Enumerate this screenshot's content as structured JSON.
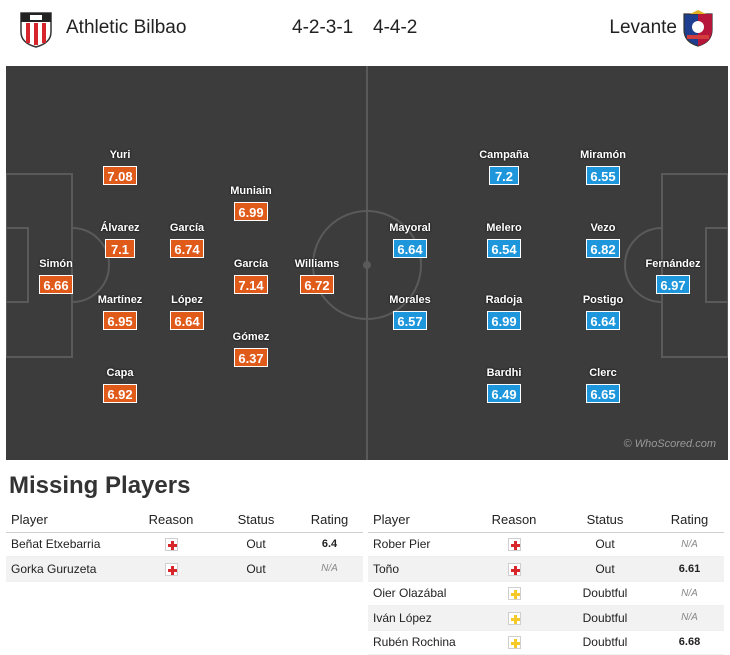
{
  "header": {
    "home_team": "Athletic Bilbao",
    "away_team": "Levante",
    "home_formation": "4-2-3-1",
    "away_formation": "4-4-2",
    "home_crest_icon": "athletic-bilbao-crest-icon",
    "away_crest_icon": "levante-crest-icon"
  },
  "pitch": {
    "watermark": "© WhoScored.com",
    "home_color": "#e05a1a",
    "away_color": "#1e96dc",
    "home_players": [
      {
        "name": "Simón",
        "rating": "6.66"
      },
      {
        "name": "Yuri",
        "rating": "7.08"
      },
      {
        "name": "Álvarez",
        "rating": "7.1"
      },
      {
        "name": "Martínez",
        "rating": "6.95"
      },
      {
        "name": "Capa",
        "rating": "6.92"
      },
      {
        "name": "García",
        "rating": "6.74"
      },
      {
        "name": "López",
        "rating": "6.64"
      },
      {
        "name": "Muniain",
        "rating": "6.99"
      },
      {
        "name": "García",
        "rating": "7.14"
      },
      {
        "name": "Gómez",
        "rating": "6.37"
      },
      {
        "name": "Williams",
        "rating": "6.72"
      }
    ],
    "away_players": [
      {
        "name": "Mayoral",
        "rating": "6.64"
      },
      {
        "name": "Morales",
        "rating": "6.57"
      },
      {
        "name": "Campaña",
        "rating": "7.2"
      },
      {
        "name": "Melero",
        "rating": "6.54"
      },
      {
        "name": "Radoja",
        "rating": "6.99"
      },
      {
        "name": "Bardhi",
        "rating": "6.49"
      },
      {
        "name": "Miramón",
        "rating": "6.55"
      },
      {
        "name": "Vezo",
        "rating": "6.82"
      },
      {
        "name": "Postigo",
        "rating": "6.64"
      },
      {
        "name": "Clerc",
        "rating": "6.65"
      },
      {
        "name": "Fernández",
        "rating": "6.97"
      }
    ]
  },
  "missing": {
    "title": "Missing Players",
    "columns": {
      "player": "Player",
      "reason": "Reason",
      "status": "Status",
      "rating": "Rating"
    },
    "home": [
      {
        "player": "Beñat Etxebarria",
        "reason": "injury",
        "status": "Out",
        "rating": "6.4"
      },
      {
        "player": "Gorka Guruzeta",
        "reason": "injury",
        "status": "Out",
        "rating": "N/A"
      }
    ],
    "away": [
      {
        "player": "Rober Pier",
        "reason": "injury",
        "status": "Out",
        "rating": "N/A"
      },
      {
        "player": "Toño",
        "reason": "injury",
        "status": "Out",
        "rating": "6.61"
      },
      {
        "player": "Oier Olazábal",
        "reason": "doubt",
        "status": "Doubtful",
        "rating": "N/A"
      },
      {
        "player": "Iván López",
        "reason": "doubt",
        "status": "Doubtful",
        "rating": "N/A"
      },
      {
        "player": "Rubén Rochina",
        "reason": "doubt",
        "status": "Doubtful",
        "rating": "6.68"
      }
    ]
  }
}
